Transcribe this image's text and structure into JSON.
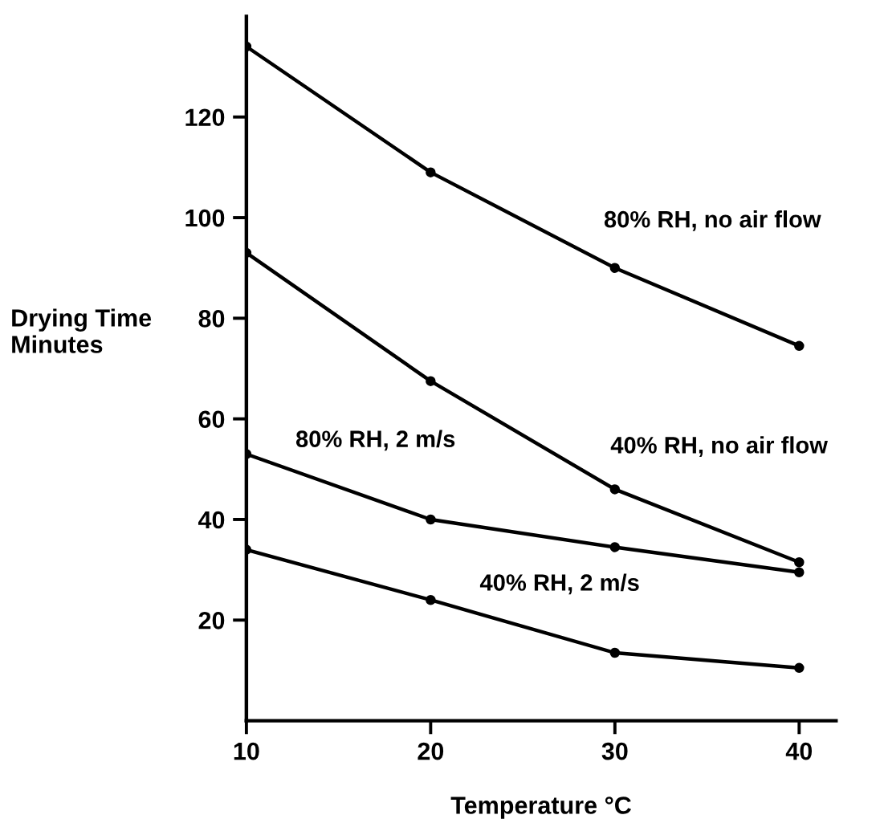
{
  "chart_data": {
    "type": "line",
    "xlabel": "Temperature °C",
    "ylabel": "Drying Time\nMinutes",
    "x": [
      10,
      20,
      30,
      40
    ],
    "series": [
      {
        "name": "80% RH, no air flow",
        "color": "#000000",
        "values": [
          134,
          109,
          90,
          74.5
        ]
      },
      {
        "name": "40% RH, no air flow",
        "color": "#000000",
        "values": [
          93,
          67.5,
          46,
          31.5
        ]
      },
      {
        "name": "80% RH, 2 m/s",
        "color": "#000000",
        "values": [
          53,
          40,
          34.5,
          29.5
        ]
      },
      {
        "name": "40% RH, 2 m/s",
        "color": "#000000",
        "values": [
          34,
          24,
          13.5,
          10.5
        ]
      }
    ],
    "xlim": [
      10,
      42
    ],
    "ylim": [
      0,
      140
    ],
    "xticks": [
      10,
      20,
      30,
      40
    ],
    "yticks": [
      20,
      40,
      60,
      80,
      100,
      120
    ],
    "marker": "circle",
    "line_style": "solid",
    "grid": false,
    "legend": false
  }
}
